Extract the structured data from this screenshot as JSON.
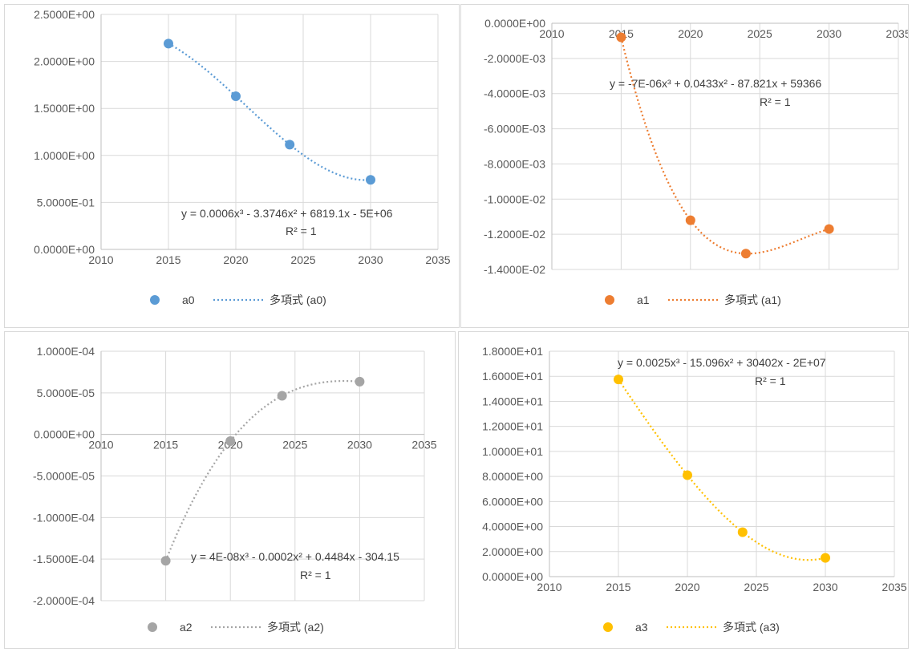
{
  "chart_data": [
    {
      "type": "scatter",
      "x": [
        2015,
        2020,
        2024,
        2030
      ],
      "series": [
        {
          "name": "a0",
          "values": [
            2.19,
            1.63,
            1.115,
            0.74
          ]
        },
        {
          "name": "多項式 (a0)",
          "values": []
        }
      ],
      "trendline": {
        "coefficients": [
          0.0006,
          -3.3746,
          6819.1,
          -5000000
        ],
        "equation": "y = 0.0006x³ - 3.3746x² + 6819.1x - 5E+06",
        "r2_text": "R² = 1"
      },
      "xlim": [
        2010,
        2035
      ],
      "ylim": [
        0,
        2.5
      ],
      "x_ticks": [
        "2010",
        "2015",
        "2020",
        "2025",
        "2030",
        "2035"
      ],
      "y_ticks": [
        "0.0000E+00",
        "5.0000E-01",
        "1.0000E+00",
        "1.5000E+00",
        "2.0000E+00",
        "2.5000E+00"
      ],
      "legend": [
        "a0",
        "多項式 (a0)"
      ],
      "legend_position": "bottom",
      "color": "#5b9bd5",
      "grid": true
    },
    {
      "type": "scatter",
      "x": [
        2015,
        2020,
        2024,
        2030
      ],
      "series": [
        {
          "name": "a1",
          "values": [
            -0.0008,
            -0.0112,
            -0.0131,
            -0.0117
          ]
        },
        {
          "name": "多項式 (a1)",
          "values": []
        }
      ],
      "trendline": {
        "coefficients": [
          -7e-06,
          0.0433,
          -87.821,
          59366
        ],
        "equation": "y = -7E-06x³ + 0.0433x² - 87.821x + 59366",
        "r2_text": "R² = 1"
      },
      "xlim": [
        2010,
        2035
      ],
      "ylim": [
        -0.014,
        0
      ],
      "x_ticks": [
        "2010",
        "2015",
        "2020",
        "2025",
        "2030",
        "2035"
      ],
      "y_ticks": [
        "-1.4000E-02",
        "-1.2000E-02",
        "-1.0000E-02",
        "-8.0000E-03",
        "-6.0000E-03",
        "-4.0000E-03",
        "-2.0000E-03",
        "0.0000E+00"
      ],
      "legend": [
        "a1",
        "多項式 (a1)"
      ],
      "legend_position": "bottom",
      "color": "#ed7d31",
      "grid": true
    },
    {
      "type": "scatter",
      "x": [
        2015,
        2020,
        2024,
        2030
      ],
      "series": [
        {
          "name": "a2",
          "values": [
            -0.000152,
            -8e-06,
            4.65e-05,
            6.35e-05
          ]
        },
        {
          "name": "多項式 (a2)",
          "values": []
        }
      ],
      "trendline": {
        "coefficients": [
          4e-08,
          -0.0002,
          0.4484,
          -304.15
        ],
        "equation": "y = 4E-08x³ - 0.0002x² + 0.4484x - 304.15",
        "r2_text": "R² = 1"
      },
      "xlim": [
        2010,
        2035
      ],
      "ylim": [
        -0.0002,
        0.0001
      ],
      "x_ticks": [
        "2010",
        "2015",
        "2020",
        "2025",
        "2030",
        "2035"
      ],
      "y_ticks": [
        "-2.0000E-04",
        "-1.5000E-04",
        "-1.0000E-04",
        "-5.0000E-05",
        "0.0000E+00",
        "5.0000E-05",
        "1.0000E-04"
      ],
      "legend": [
        "a2",
        "多項式 (a2)"
      ],
      "legend_position": "bottom",
      "color": "#a5a5a5",
      "grid": true
    },
    {
      "type": "scatter",
      "x": [
        2015,
        2020,
        2024,
        2030
      ],
      "series": [
        {
          "name": "a3",
          "values": [
            15.75,
            8.1,
            3.55,
            1.5
          ]
        },
        {
          "name": "多項式 (a3)",
          "values": []
        }
      ],
      "trendline": {
        "coefficients": [
          0.0025,
          -15.096,
          30402,
          -20000000
        ],
        "equation": "y = 0.0025x³ - 15.096x² + 30402x - 2E+07",
        "r2_text": "R² = 1"
      },
      "xlim": [
        2010,
        2035
      ],
      "ylim": [
        0,
        18
      ],
      "x_ticks": [
        "2010",
        "2015",
        "2020",
        "2025",
        "2030",
        "2035"
      ],
      "y_ticks": [
        "0.0000E+00",
        "2.0000E+00",
        "4.0000E+00",
        "6.0000E+00",
        "8.0000E+00",
        "1.0000E+01",
        "1.2000E+01",
        "1.4000E+01",
        "1.6000E+01",
        "1.8000E+01"
      ],
      "legend": [
        "a3",
        "多項式 (a3)"
      ],
      "legend_position": "bottom",
      "color": "#ffc000",
      "grid": true
    }
  ]
}
